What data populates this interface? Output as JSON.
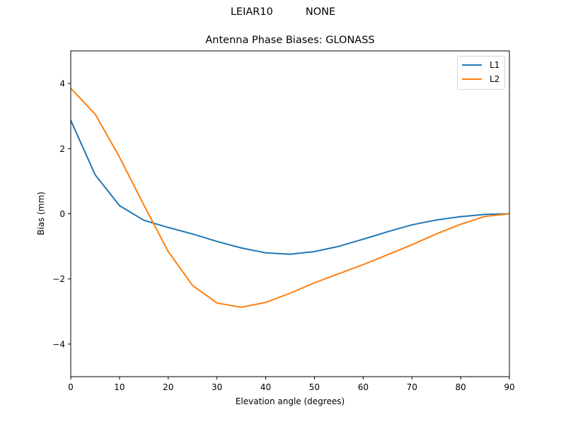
{
  "figure": {
    "suptitle": "LEIAR10          NONE",
    "title": "Antenna Phase Biases: GLONASS",
    "xlabel": "Elevation angle (degrees)",
    "ylabel": "Bias (mm)"
  },
  "legend": {
    "items": [
      {
        "label": "L1",
        "color": "#1f77b4"
      },
      {
        "label": "L2",
        "color": "#ff7f0e"
      }
    ]
  },
  "chart_data": {
    "type": "line",
    "title": "Antenna Phase Biases: GLONASS",
    "suptitle": "LEIAR10          NONE",
    "xlabel": "Elevation angle (degrees)",
    "ylabel": "Bias (mm)",
    "xlim": [
      0,
      90
    ],
    "ylim": [
      -5,
      5
    ],
    "xticks": [
      0,
      10,
      20,
      30,
      40,
      50,
      60,
      70,
      80,
      90
    ],
    "yticks": [
      -4,
      -2,
      0,
      2,
      4
    ],
    "ytick_labels": [
      "−4",
      "−2",
      "0",
      "2",
      "4"
    ],
    "grid": false,
    "legend_position": "upper right",
    "x": [
      0,
      5,
      10,
      15,
      20,
      25,
      30,
      35,
      40,
      45,
      50,
      55,
      60,
      65,
      70,
      75,
      80,
      85,
      90
    ],
    "series": [
      {
        "name": "L1",
        "color": "#1f77b4",
        "values": [
          2.87,
          1.2,
          0.25,
          -0.2,
          -0.42,
          -0.62,
          -0.85,
          -1.05,
          -1.2,
          -1.24,
          -1.16,
          -1.0,
          -0.78,
          -0.55,
          -0.34,
          -0.19,
          -0.09,
          -0.02,
          0.0
        ]
      },
      {
        "name": "L2",
        "color": "#ff7f0e",
        "values": [
          3.85,
          3.06,
          1.74,
          0.27,
          -1.16,
          -2.2,
          -2.74,
          -2.87,
          -2.72,
          -2.44,
          -2.12,
          -1.84,
          -1.56,
          -1.26,
          -0.95,
          -0.62,
          -0.32,
          -0.08,
          0.0
        ]
      }
    ]
  }
}
